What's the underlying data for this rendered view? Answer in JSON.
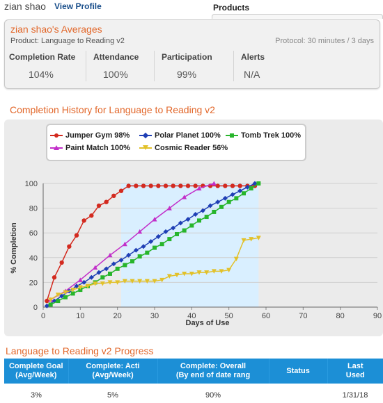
{
  "header": {
    "user_name": "zian shao",
    "view_profile": "View Profile",
    "products_label": "Products"
  },
  "averages": {
    "title": "zian shao's Averages",
    "product": "Product: Language to Reading v2",
    "protocol": "Protocol: 30 minutes / 3 days",
    "metrics": [
      {
        "label": "Completion Rate",
        "value": "104%"
      },
      {
        "label": "Attendance",
        "value": "100%"
      },
      {
        "label": "Participation",
        "value": "99%"
      },
      {
        "label": "Alerts",
        "value": "N/A"
      }
    ]
  },
  "history": {
    "title": "Completion History for Language to Reading v2"
  },
  "colors": {
    "accent_orange": "#e2672a",
    "table_header_blue": "#1c8fd6",
    "shade": "#d9efff"
  },
  "chart_data": {
    "type": "line",
    "xlabel": "Days of Use",
    "ylabel": "% Completion",
    "xlim": [
      0,
      90
    ],
    "ylim": [
      0,
      100
    ],
    "xticks": [
      0,
      10,
      20,
      30,
      40,
      50,
      60,
      70,
      80,
      90
    ],
    "yticks": [
      0,
      20,
      40,
      60,
      80,
      100
    ],
    "shaded_x_range": [
      21,
      58
    ],
    "legend_placement": "top",
    "series": [
      {
        "name": "Jumper Gym 98%",
        "color": "#d32a1f",
        "marker": "circle",
        "x": [
          1,
          3,
          5,
          7,
          9,
          11,
          13,
          15,
          17,
          19,
          21,
          23,
          25,
          27,
          29,
          31,
          33,
          35,
          37,
          39,
          41,
          43,
          45,
          47,
          49,
          51,
          53,
          55,
          57
        ],
        "y": [
          5,
          24,
          36,
          49,
          58,
          70,
          74,
          82,
          85,
          90,
          94,
          98,
          98,
          98,
          98,
          98,
          98,
          98,
          98,
          98,
          98,
          98,
          98,
          98,
          98,
          98,
          98,
          98,
          98
        ]
      },
      {
        "name": "Polar Planet 100%",
        "color": "#1f3fb5",
        "marker": "diamond",
        "x": [
          1,
          3,
          5,
          7,
          9,
          11,
          13,
          15,
          17,
          19,
          21,
          23,
          25,
          27,
          29,
          31,
          33,
          35,
          37,
          39,
          41,
          43,
          45,
          47,
          49,
          51,
          53,
          55,
          57
        ],
        "y": [
          1,
          5,
          9,
          13,
          17,
          20,
          24,
          28,
          31,
          35,
          38,
          42,
          46,
          49,
          53,
          57,
          61,
          64,
          68,
          71,
          75,
          78,
          82,
          85,
          88,
          91,
          94,
          97,
          100
        ]
      },
      {
        "name": "Tomb Trek 100%",
        "color": "#27b52b",
        "marker": "square",
        "x": [
          2,
          4,
          6,
          8,
          10,
          12,
          14,
          16,
          18,
          20,
          22,
          24,
          26,
          28,
          30,
          32,
          34,
          36,
          38,
          40,
          42,
          44,
          46,
          48,
          50,
          52,
          54,
          56,
          58
        ],
        "y": [
          2,
          5,
          8,
          11,
          14,
          17,
          20,
          24,
          27,
          31,
          34,
          37,
          41,
          44,
          48,
          51,
          55,
          59,
          62,
          66,
          70,
          73,
          77,
          81,
          85,
          88,
          92,
          96,
          100
        ]
      },
      {
        "name": "Paint Match 100%",
        "color": "#c22fc9",
        "marker": "triangle",
        "x": [
          2,
          6,
          10,
          14,
          18,
          22,
          26,
          30,
          34,
          38,
          42,
          46
        ],
        "y": [
          6,
          13,
          22,
          32,
          42,
          51,
          61,
          71,
          80,
          89,
          96,
          100
        ]
      },
      {
        "name": "Cosmic Reader 56%",
        "color": "#e2c12a",
        "marker": "triangle-down",
        "x": [
          2,
          4,
          6,
          8,
          10,
          12,
          14,
          16,
          18,
          20,
          22,
          24,
          26,
          28,
          30,
          32,
          34,
          36,
          38,
          40,
          42,
          44,
          46,
          48,
          50,
          52,
          54,
          56,
          58
        ],
        "y": [
          6,
          10,
          12,
          14,
          16,
          17,
          19,
          19,
          20,
          20,
          21,
          21,
          21,
          21,
          21,
          22,
          25,
          26,
          27,
          27,
          28,
          28,
          29,
          29,
          30,
          39,
          54,
          55,
          56
        ]
      }
    ]
  },
  "progress": {
    "title": "Language to Reading v2 Progress",
    "columns": [
      {
        "line1": "Complete Goal",
        "line2": "(Avg/Week)"
      },
      {
        "line1": "Complete: Acti",
        "line2": "(Avg/Week)"
      },
      {
        "line1": "Complete: Overall",
        "line2": "(By end of date rang"
      },
      {
        "line1": "Status",
        "line2": ""
      },
      {
        "line1": "Last",
        "line2": "Used"
      }
    ],
    "row": [
      "3%",
      "5%",
      "90%",
      "",
      "1/31/18"
    ]
  }
}
